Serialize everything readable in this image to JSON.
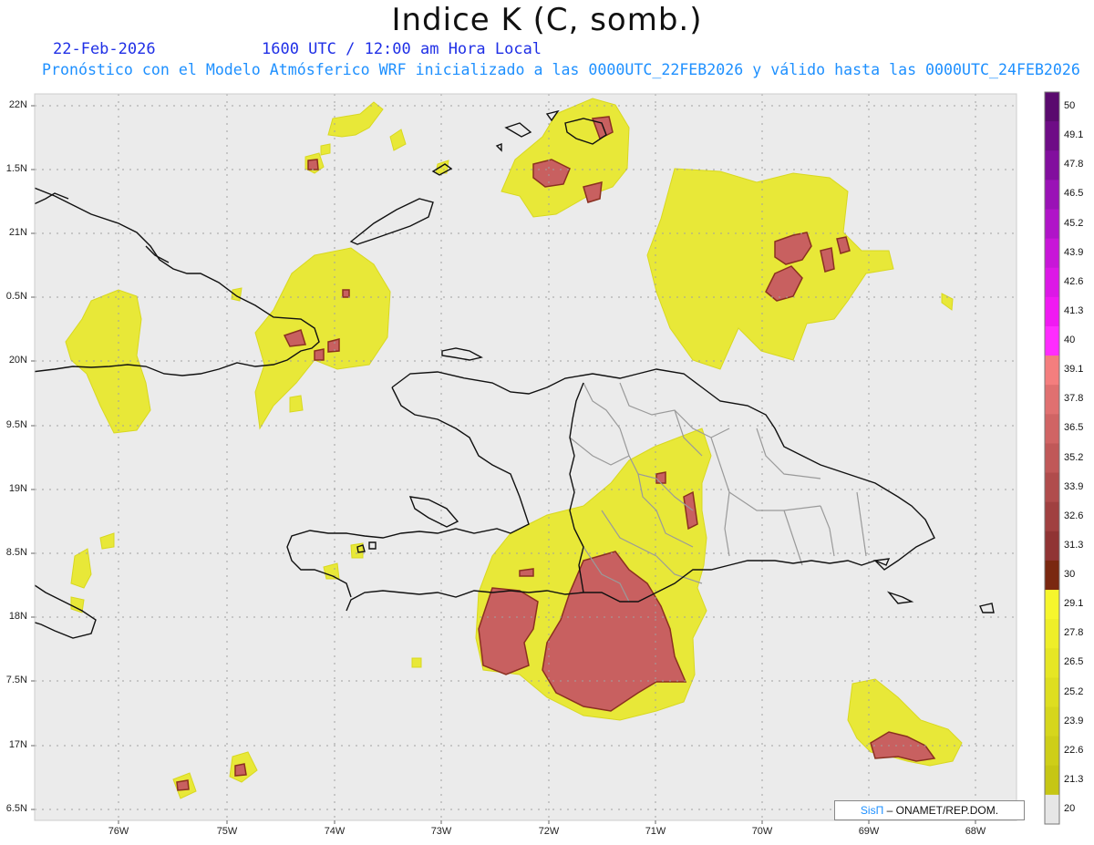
{
  "header": {
    "title": "Indice K (C, somb.)",
    "date": "22-Feb-2026",
    "time_info": "1600 UTC / 12:00 am Hora Local",
    "forecast_info": "Pronóstico con el Modelo Atmósferico WRF inicializado a las 0000UTC_22FEB2026 y válido hasta las  0000UTC_24FEB2026"
  },
  "map": {
    "lat_labels": [
      "22N",
      "1.5N",
      "21N",
      "0.5N",
      "20N",
      "9.5N",
      "19N",
      "8.5N",
      "18N",
      "7.5N",
      "17N",
      "6.5N"
    ],
    "lon_labels": [
      "76W",
      "75W",
      "74W",
      "73W",
      "72W",
      "71W",
      "70W",
      "69W",
      "68W"
    ],
    "background_color": "#ebebeb"
  },
  "colorbar": {
    "labels": [
      "50",
      "49.1",
      "47.8",
      "46.5",
      "45.2",
      "43.9",
      "42.6",
      "41.3",
      "40",
      "39.1",
      "37.8",
      "36.5",
      "35.2",
      "33.9",
      "32.6",
      "31.3",
      "30",
      "29.1",
      "27.8",
      "26.5",
      "25.2",
      "23.9",
      "22.6",
      "21.3",
      "20"
    ],
    "colors": [
      "#5a0a6e",
      "#6e0c86",
      "#820e9e",
      "#9a12b6",
      "#b014c8",
      "#c816d8",
      "#dc18e6",
      "#f01af2",
      "#ff2cff",
      "#f47e7e",
      "#e07070",
      "#d06464",
      "#c05858",
      "#b04c4c",
      "#a04040",
      "#903434",
      "#7a2810",
      "#f6f62c",
      "#eeee28",
      "#e6e624",
      "#dede20",
      "#d6d61c",
      "#cece18",
      "#c6c614",
      "#e6e6e6"
    ]
  },
  "credit": {
    "brand": "SisΠ",
    "org": "– ONAMET/REP.DOM."
  }
}
